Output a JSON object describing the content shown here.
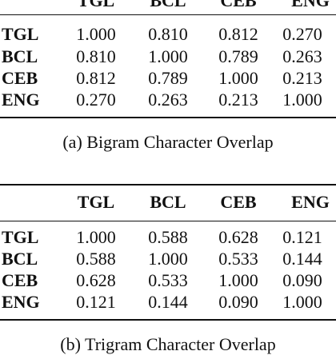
{
  "tables": [
    {
      "headers": [
        "TGL",
        "BCL",
        "CEB",
        "ENG"
      ],
      "rows": [
        {
          "label": "TGL",
          "values": [
            "1.000",
            "0.810",
            "0.812",
            "0.270"
          ]
        },
        {
          "label": "BCL",
          "values": [
            "0.810",
            "1.000",
            "0.789",
            "0.263"
          ]
        },
        {
          "label": "CEB",
          "values": [
            "0.812",
            "0.789",
            "1.000",
            "0.213"
          ]
        },
        {
          "label": "ENG",
          "values": [
            "0.270",
            "0.263",
            "0.213",
            "1.000"
          ]
        }
      ],
      "caption": "(a) Bigram Character Overlap"
    },
    {
      "headers": [
        "TGL",
        "BCL",
        "CEB",
        "ENG"
      ],
      "rows": [
        {
          "label": "TGL",
          "values": [
            "1.000",
            "0.588",
            "0.628",
            "0.121"
          ]
        },
        {
          "label": "BCL",
          "values": [
            "0.588",
            "1.000",
            "0.533",
            "0.144"
          ]
        },
        {
          "label": "CEB",
          "values": [
            "0.628",
            "0.533",
            "1.000",
            "0.090"
          ]
        },
        {
          "label": "ENG",
          "values": [
            "0.121",
            "0.144",
            "0.090",
            "1.000"
          ]
        }
      ],
      "caption": "(b) Trigram Character Overlap"
    }
  ]
}
